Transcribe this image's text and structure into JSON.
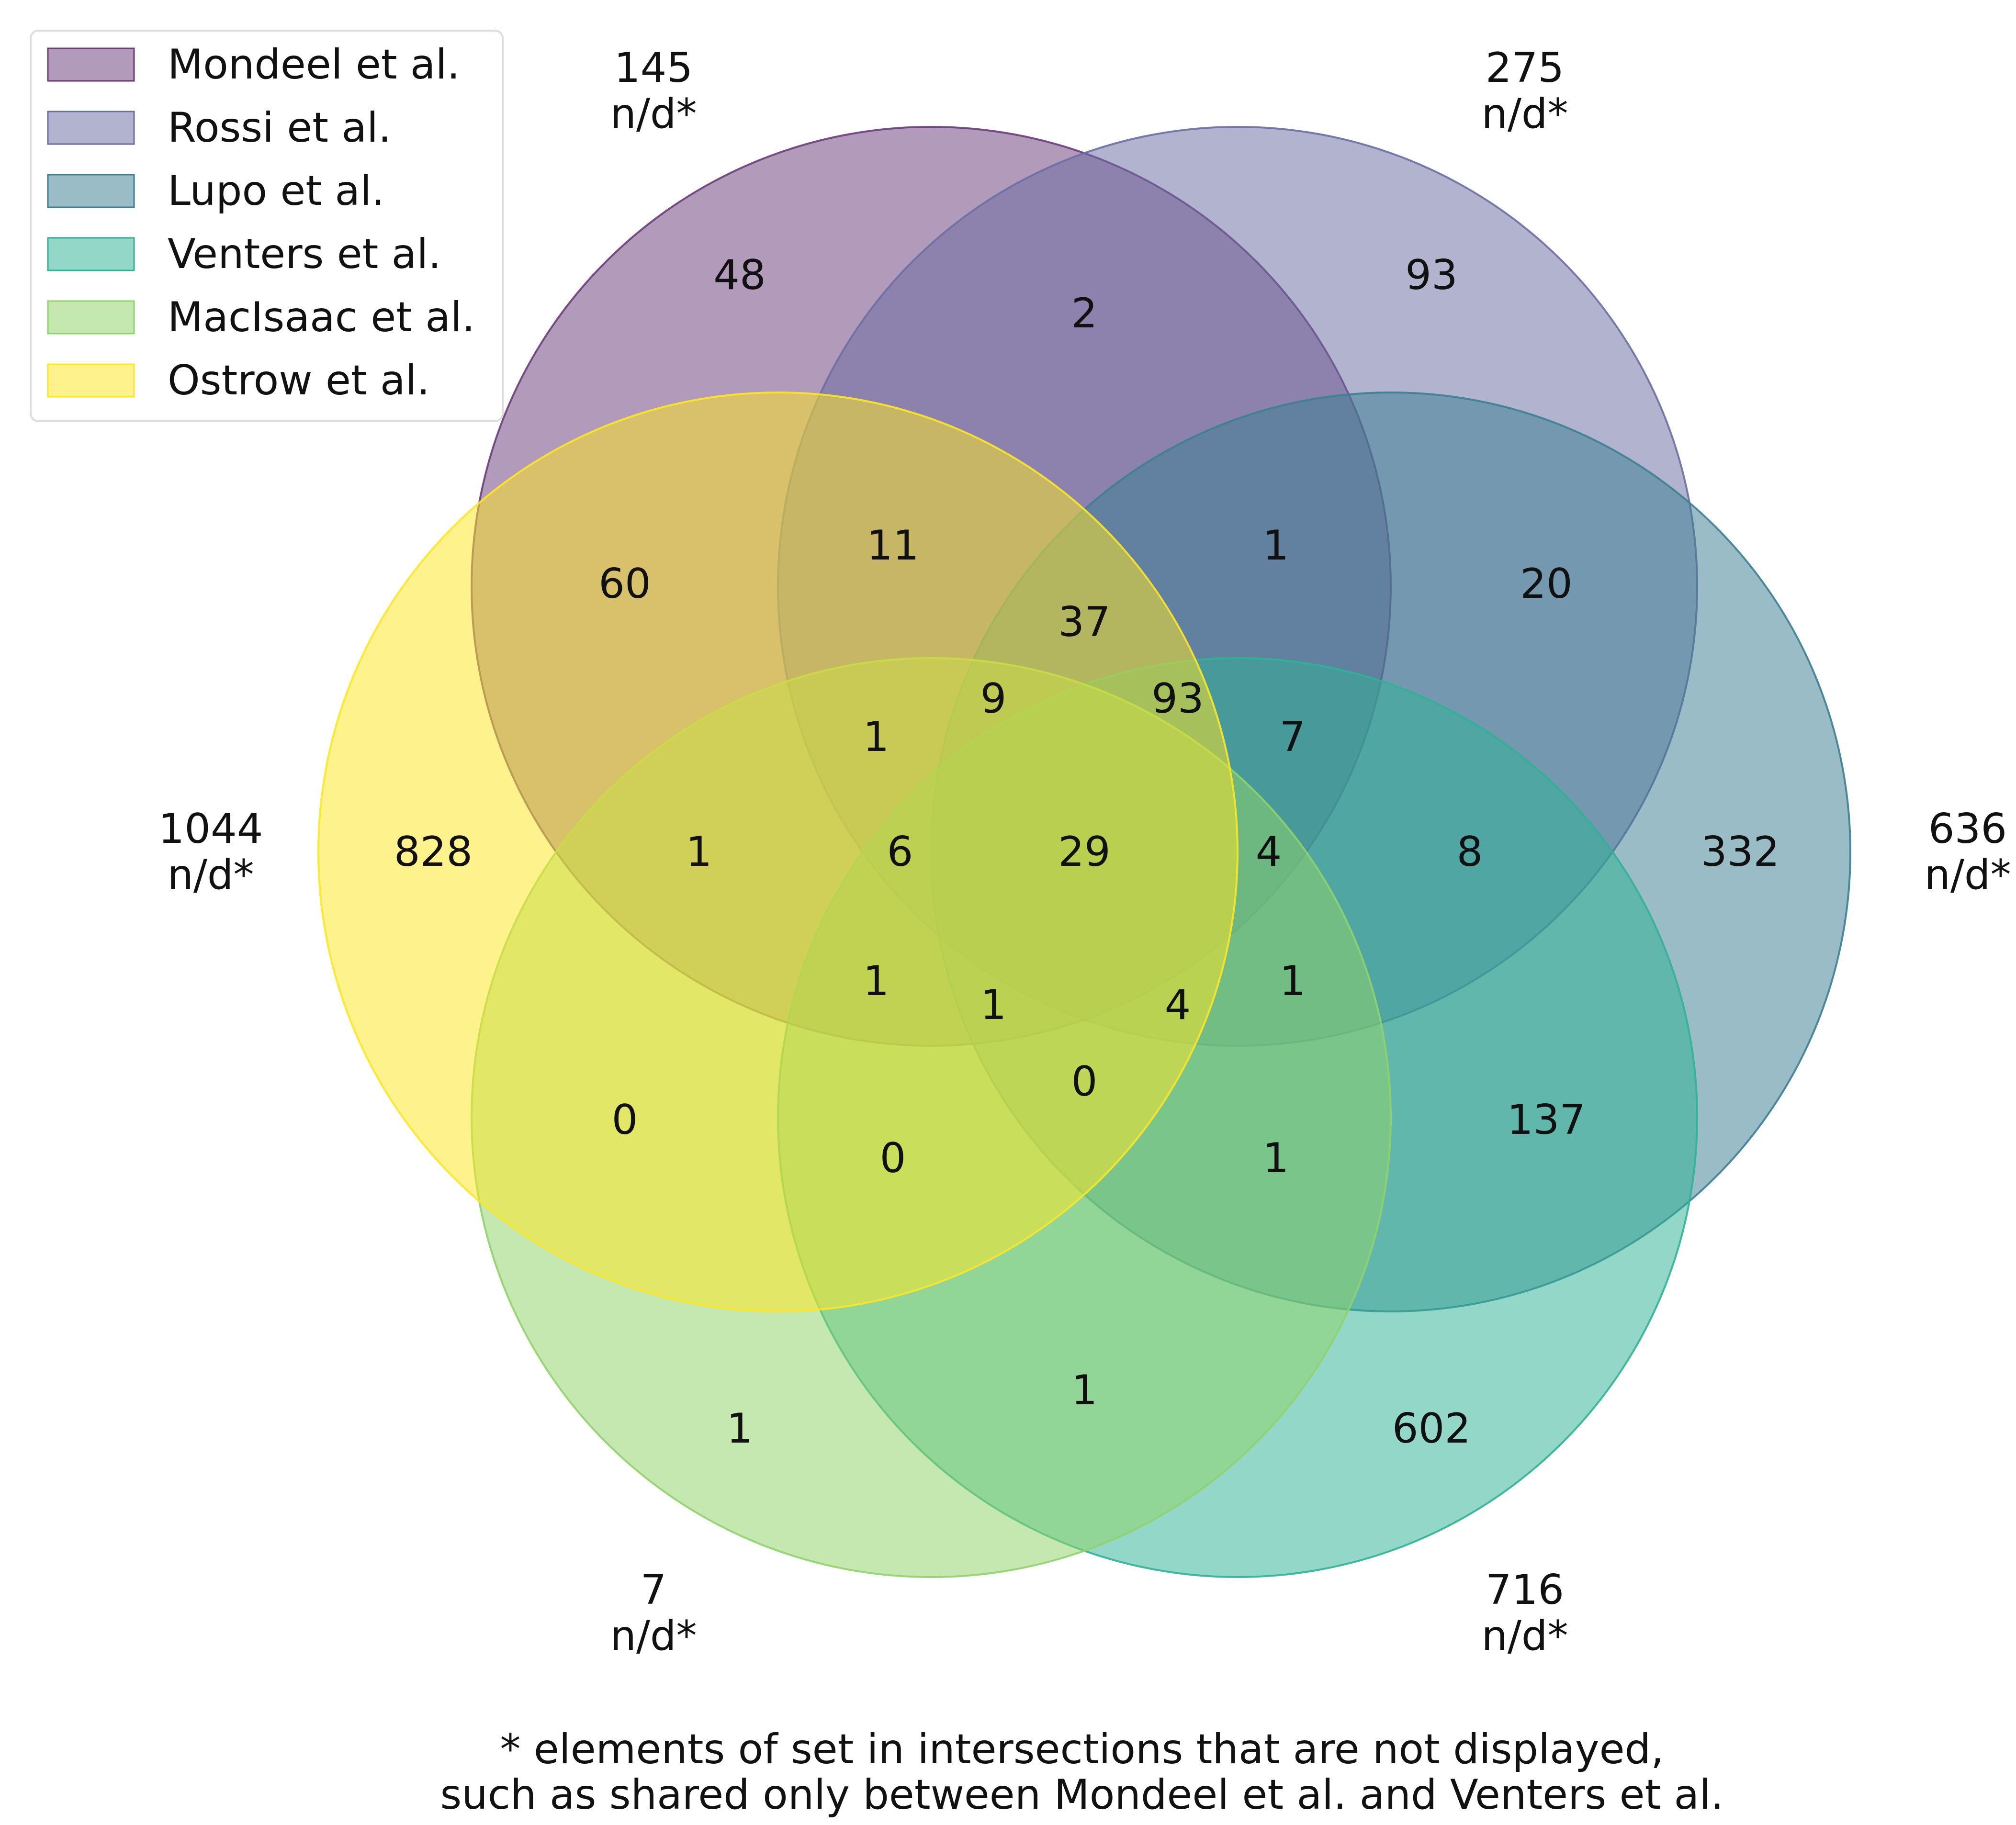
{
  "chart_data": {
    "type": "venn",
    "legend_position": "top-left",
    "sets": [
      {
        "name": "Mondeel et al.",
        "color": "#6a3d7a",
        "total": "145",
        "total_note": "n/d*"
      },
      {
        "name": "Rossi et al.",
        "color": "#6b6ea3",
        "total": "275",
        "total_note": "n/d*"
      },
      {
        "name": "Lupo et al.",
        "color": "#3b7f92",
        "total": "636",
        "total_note": "n/d*"
      },
      {
        "name": "Venters et al.",
        "color": "#2fb296",
        "total": "716",
        "total_note": "n/d*"
      },
      {
        "name": "MacIsaac et al.",
        "color": "#8fd36a",
        "total": "7",
        "total_note": "n/d*"
      },
      {
        "name": "Ostrow et al.",
        "color": "#fde725",
        "total": "1044",
        "total_note": "n/d*"
      }
    ],
    "region_values": [
      "48",
      "2",
      "93",
      "60",
      "11",
      "1",
      "20",
      "37",
      "9",
      "93",
      "1",
      "7",
      "828",
      "1",
      "6",
      "29",
      "4",
      "8",
      "332",
      "1",
      "1",
      "4",
      "1",
      "0",
      "0",
      "0",
      "1",
      "137",
      "1",
      "1",
      "602"
    ],
    "footnote": [
      "* elements of set in intersections that are not displayed,",
      "such as shared only between Mondeel et al. and Venters et al."
    ]
  }
}
